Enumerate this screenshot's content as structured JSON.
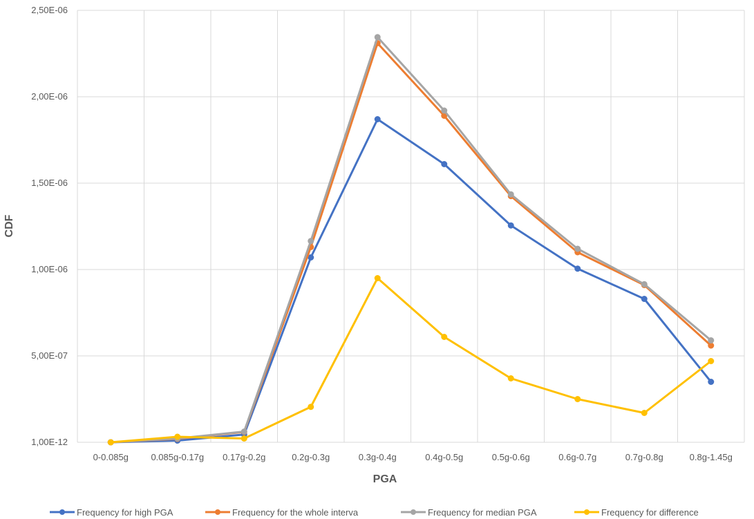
{
  "chart_data": {
    "type": "line",
    "title": "",
    "xlabel": "PGA",
    "ylabel": "CDF",
    "categories": [
      "0-0.085g",
      "0.085g-0.17g",
      "0.17g-0.2g",
      "0.2g-0.3g",
      "0.3g-0.4g",
      "0.4g-0.5g",
      "0.5g-0.6g",
      "0.6g-0.7g",
      "0.7g-0.8g",
      "0.8g-1.45g"
    ],
    "ylim": [
      0,
      2.5e-06
    ],
    "yticks": [
      0,
      5e-07,
      1e-06,
      1.5e-06,
      2e-06,
      2.5e-06
    ],
    "ytick_labels": [
      "1,00E-12",
      "5,00E-07",
      "1,00E-06",
      "1,50E-06",
      "2,00E-06",
      "2,50E-06"
    ],
    "grid": "vertical and horizontal",
    "legend_position": "bottom",
    "series": [
      {
        "name": "Frequency for high PGA",
        "color": "#4472C4",
        "values": [
          1e-12,
          1e-08,
          4.5e-08,
          1.07e-06,
          1.87e-06,
          1.61e-06,
          1.255e-06,
          1.005e-06,
          8.3e-07,
          3.5e-07
        ]
      },
      {
        "name": "Frequency for the whole interva",
        "color": "#ED7D31",
        "values": [
          1e-12,
          2e-08,
          6e-08,
          1.13e-06,
          2.31e-06,
          1.89e-06,
          1.425e-06,
          1.1e-06,
          9.1e-07,
          5.6e-07
        ]
      },
      {
        "name": "Frequency for median PGA",
        "color": "#A5A5A5",
        "values": [
          1e-12,
          2.2e-08,
          6.2e-08,
          1.165e-06,
          2.345e-06,
          1.92e-06,
          1.435e-06,
          1.12e-06,
          9.15e-07,
          5.9e-07
        ]
      },
      {
        "name": "Frequency for difference",
        "color": "#FFC000",
        "values": [
          1e-12,
          3.2e-08,
          2.2e-08,
          2.05e-07,
          9.5e-07,
          6.1e-07,
          3.7e-07,
          2.5e-07,
          1.7e-07,
          4.7e-07
        ]
      }
    ]
  }
}
